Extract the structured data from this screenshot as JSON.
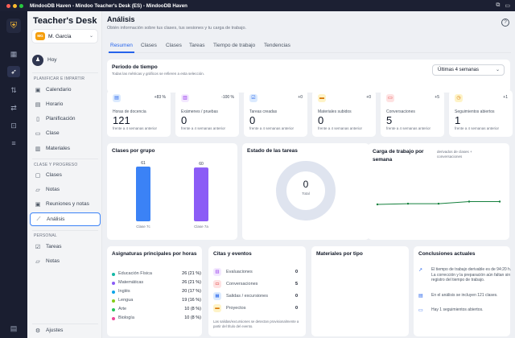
{
  "window": {
    "title": "MindooDB Haven - Mindoo Teacher's Desk (ES) - MindooDB Haven"
  },
  "brand": {
    "name_a": "Teacher's",
    "name_b": "Desk"
  },
  "user": {
    "initials": "MG",
    "name": "M. García"
  },
  "sidebar": {
    "hoy": "Hoy",
    "sections": [
      {
        "title": "PLANIFICAR E IMPARTIR",
        "items": [
          "Calendario",
          "Horario",
          "Planificación",
          "Clase",
          "Materiales"
        ]
      },
      {
        "title": "CLASE Y PROGRESO",
        "items": [
          "Clases",
          "Notas",
          "Reuniones y notas",
          "Análisis"
        ]
      },
      {
        "title": "PERSONAL",
        "items": [
          "Tareas",
          "Notas"
        ]
      }
    ],
    "settings": "Ajustes"
  },
  "page": {
    "title": "Análisis",
    "subtitle": "Obtén información sobre tus clases, tus sesiones y tu carga de trabajo."
  },
  "tabs": [
    "Resumen",
    "Clases",
    "Clases",
    "Tareas",
    "Tiempo de trabajo",
    "Tendencias"
  ],
  "period": {
    "title": "Periodo de tiempo",
    "subtitle": "Todas las métricas y gráficos se refieren a esta selección.",
    "selected": "Últimas 4 semanas"
  },
  "kpis": [
    {
      "label": "Horas de docencia",
      "value": "121",
      "change": "+83 %",
      "compare": "frente a 4 semanas anterior",
      "icon": "book-icon",
      "color": "#2563eb",
      "bg": "#dbeafe"
    },
    {
      "label": "Exámenes / pruebas",
      "value": "0",
      "change": "-100 %",
      "compare": "frente a 4 semanas anterior",
      "icon": "file-icon",
      "color": "#9333ea",
      "bg": "#f3e8ff"
    },
    {
      "label": "Tareas creadas",
      "value": "0",
      "change": "+0",
      "compare": "frente a 4 semanas anterior",
      "icon": "check-icon",
      "color": "#2563eb",
      "bg": "#dbeafe"
    },
    {
      "label": "Materiales subidos",
      "value": "0",
      "change": "+0",
      "compare": "frente a 4 semanas anterior",
      "icon": "folder-icon",
      "color": "#d97706",
      "bg": "#fef3c7"
    },
    {
      "label": "Conversaciones",
      "value": "5",
      "change": "+5",
      "compare": "frente a 4 semanas anterior",
      "icon": "chat-icon",
      "color": "#dc2626",
      "bg": "#fee2e2"
    },
    {
      "label": "Seguimientos abiertos",
      "value": "1",
      "change": "+1",
      "compare": "frente a 4 semanas anterior",
      "icon": "clock-icon",
      "color": "#d97706",
      "bg": "#fef3c7"
    }
  ],
  "cards": {
    "by_group": "Clases por grupo",
    "task_status": "Estado de las tareas",
    "workload": "Carga de trabajo por semana",
    "workload_note": "derivados de clases + conversaciones",
    "subjects": "Asignaturas principales por horas",
    "events": "Citas y eventos",
    "materials": "Materiales por tipo",
    "conclusions": "Conclusiones actuales"
  },
  "task_donut": {
    "value": "0",
    "label": "Total"
  },
  "chart_data": [
    {
      "type": "bar",
      "title": "Clases por grupo",
      "categories": [
        "Clase 7c",
        "Clase 7a"
      ],
      "values": [
        61,
        60
      ],
      "colors": [
        "#3b82f6",
        "#8b5cf6"
      ],
      "ylim": [
        0,
        61
      ]
    },
    {
      "type": "line",
      "title": "Carga de trabajo por semana",
      "x": [
        1,
        2,
        3,
        4,
        5
      ],
      "series": [
        {
          "values": [
            8,
            8.5,
            8.5,
            10,
            10
          ]
        }
      ],
      "color": "#15803d",
      "ylim": [
        0,
        40
      ]
    }
  ],
  "subjects": [
    {
      "name": "Educación Física",
      "value": "26 (21 %)",
      "color": "#14b8a6"
    },
    {
      "name": "Matemáticas",
      "value": "26 (21 %)",
      "color": "#8b5cf6"
    },
    {
      "name": "Inglés",
      "value": "20 (17 %)",
      "color": "#0ea5e9"
    },
    {
      "name": "Lengua",
      "value": "19 (16 %)",
      "color": "#84cc16"
    },
    {
      "name": "Arte",
      "value": "10 (8 %)",
      "color": "#22c55e"
    },
    {
      "name": "Biología",
      "value": "10 (8 %)",
      "color": "#ec4899"
    }
  ],
  "events": {
    "rows": [
      {
        "name": "Evaluaciones",
        "value": "0",
        "icon": "file-icon",
        "color": "#9333ea",
        "bg": "#f3e8ff"
      },
      {
        "name": "Conversaciones",
        "value": "5",
        "icon": "chat-icon",
        "color": "#dc2626",
        "bg": "#fee2e2"
      },
      {
        "name": "Salidas / excursiones",
        "value": "0",
        "icon": "calendar-icon",
        "color": "#2563eb",
        "bg": "#dbeafe"
      },
      {
        "name": "Proyectos",
        "value": "0",
        "icon": "folder-icon",
        "color": "#d97706",
        "bg": "#fef3c7"
      }
    ],
    "note": "Las salidas/excursiones se detectan provisionalmente a partir del título del evento."
  },
  "conclusions": [
    {
      "icon": "trend-up-icon",
      "text": "El tiempo de trabajo derivable es de 94:20 h. La corrección y la preparación aún faltan sin registro del tiempo de trabajo."
    },
    {
      "icon": "book-icon",
      "text": "En el análisis se incluyen 121 clases."
    },
    {
      "icon": "chat-icon",
      "text": "Hay 1 seguimientos abiertos."
    }
  ]
}
